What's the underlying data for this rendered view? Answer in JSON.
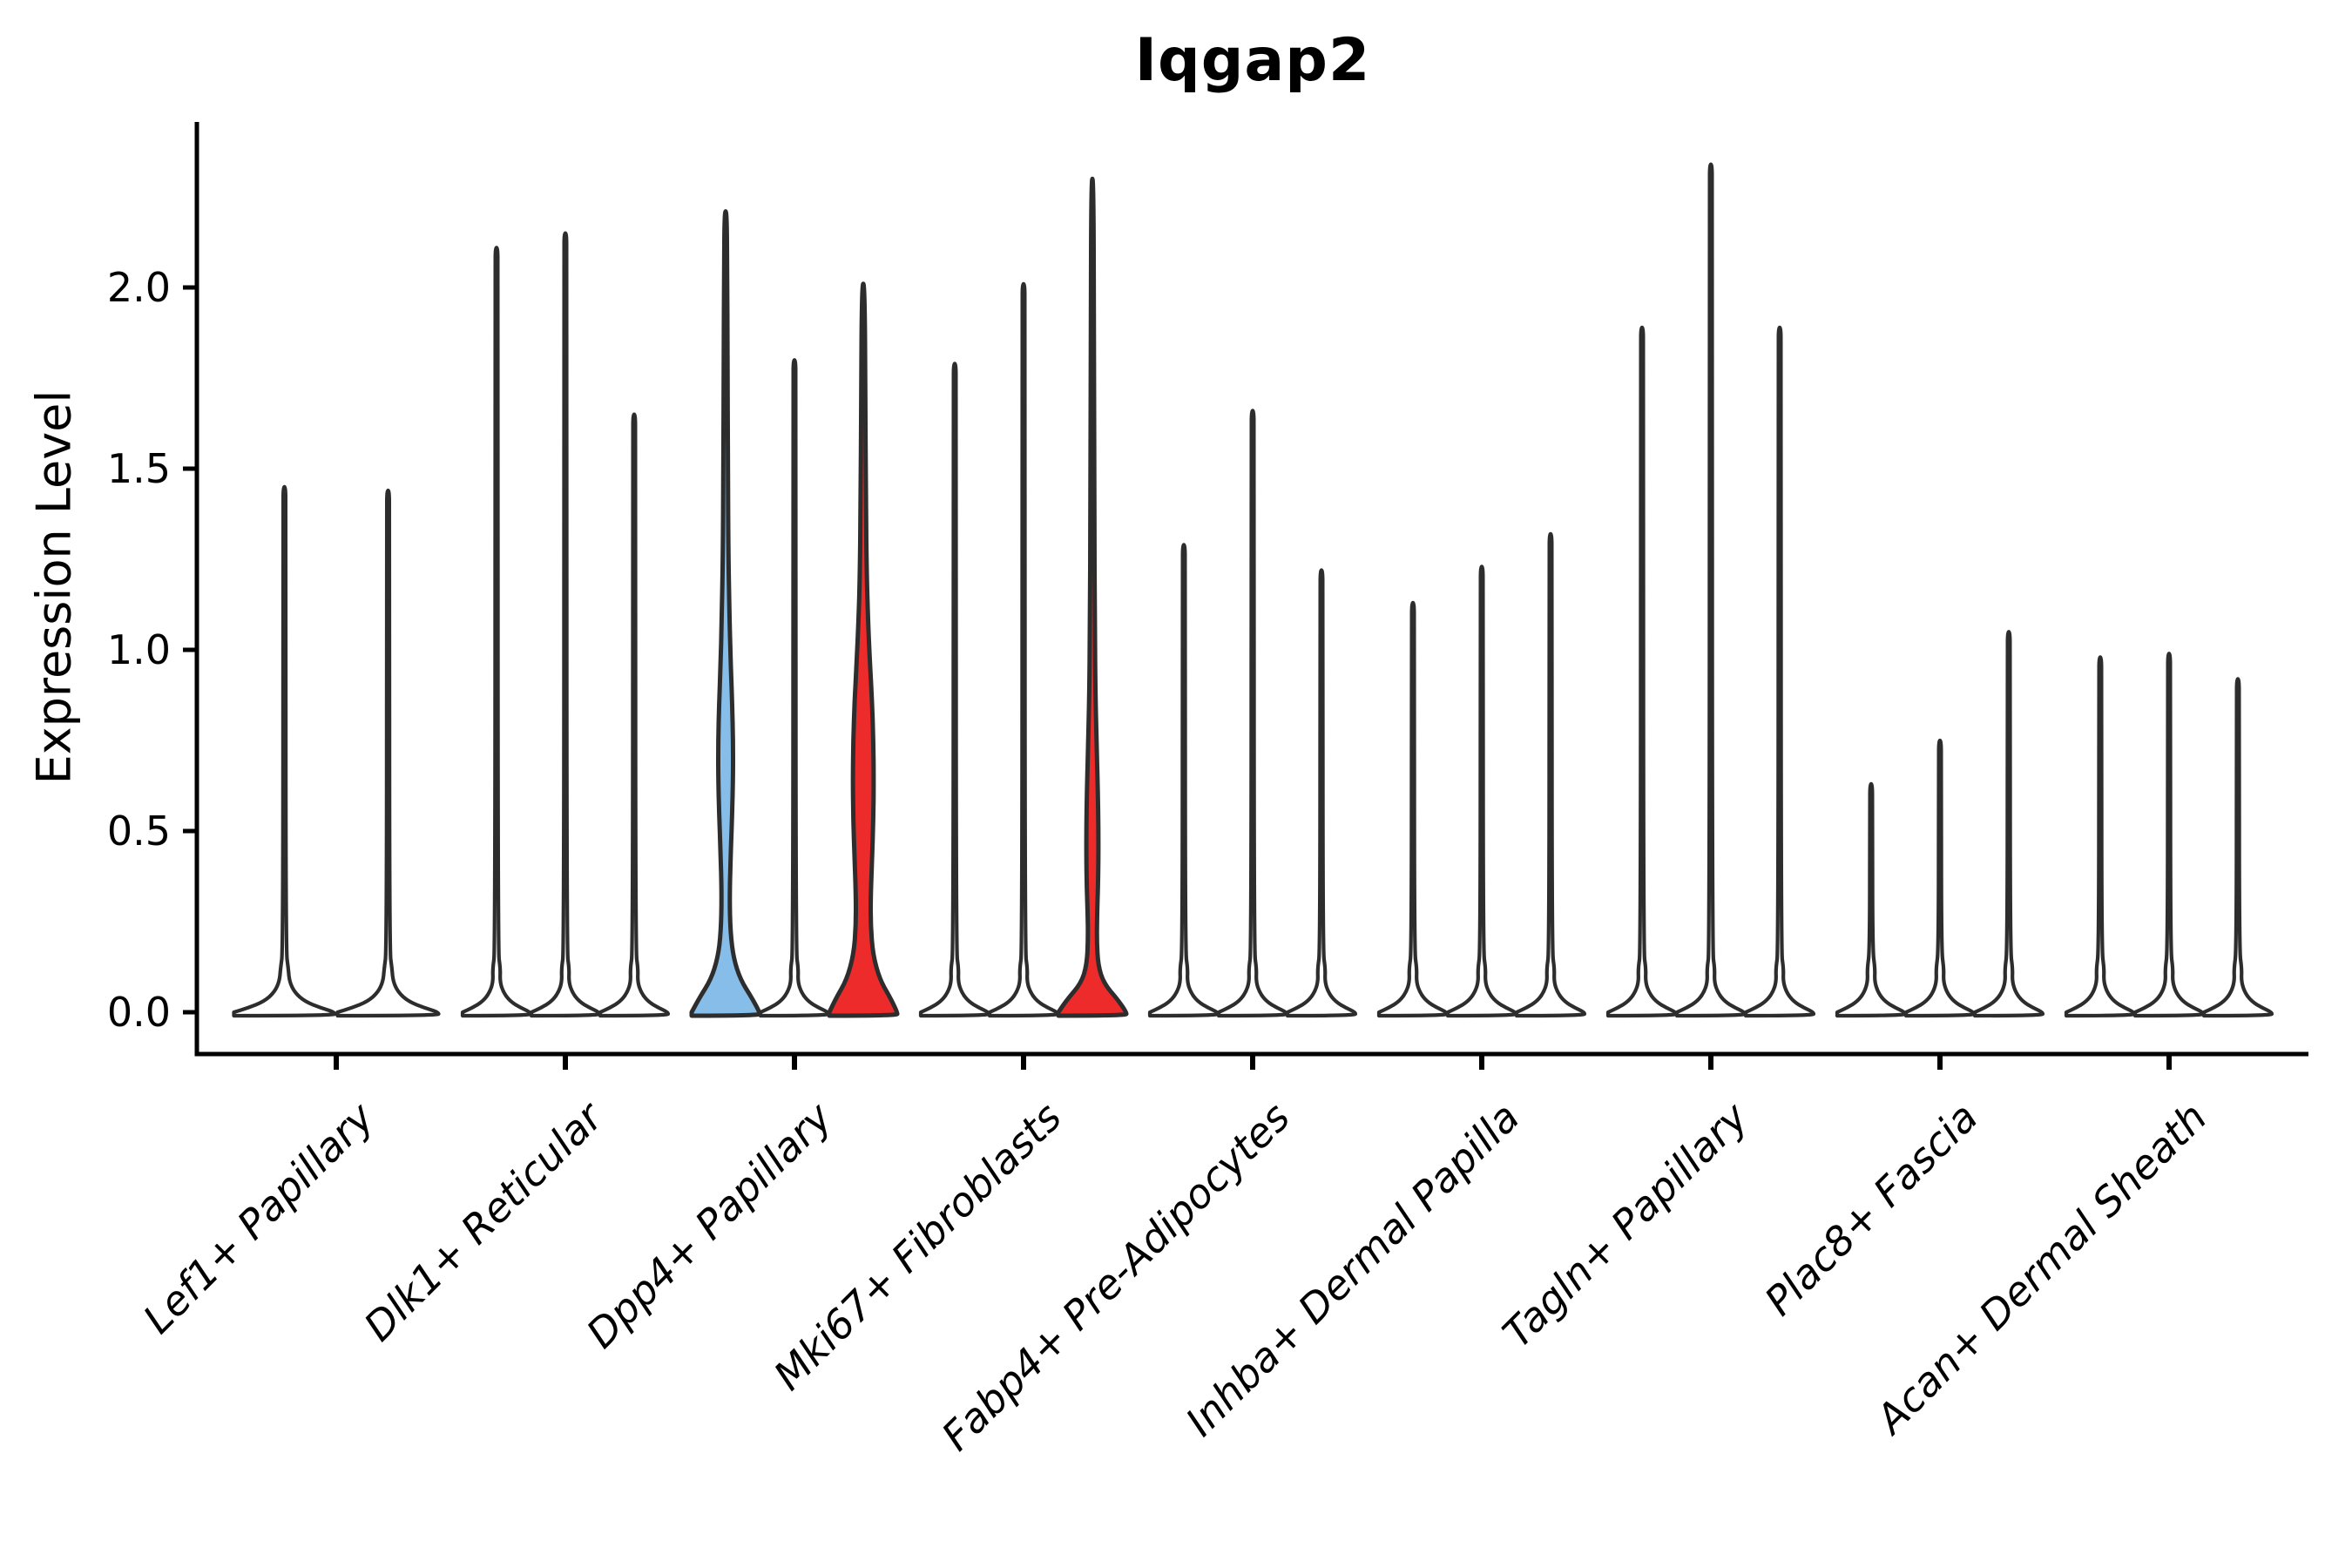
{
  "chart_data": {
    "type": "violin",
    "title": "Iqgap2",
    "ylabel": "Expression Level",
    "yticks": [
      0.0,
      0.5,
      1.0,
      1.5,
      2.0
    ],
    "ylim": [
      -0.1,
      2.46
    ],
    "grid": false,
    "legend": false,
    "categories": [
      "Lef1+ Papillary",
      "Dlk1+ Reticular",
      "Dpp4+ Papillary",
      "Mki67+ Fibroblasts",
      "Fabp4+ Pre-Adipocytes",
      "Inhba+ Dermal Papilla",
      "Tagln+ Papillary",
      "Plac8+ Fascia",
      "Acan+ Dermal Sheath"
    ],
    "palette": {
      "highlight_blue": "#86BEE9",
      "highlight_red": "#EE2B2B",
      "violin_fill": "#ffffff",
      "violin_outline": "#2D2D2D",
      "axis": "#000000"
    },
    "groups": [
      {
        "category": "Lef1+ Papillary",
        "violins": [
          {
            "max": 1.45
          },
          {
            "max": 1.44
          }
        ]
      },
      {
        "category": "Dlk1+ Reticular",
        "violins": [
          {
            "max": 2.11
          },
          {
            "max": 2.15
          },
          {
            "max": 1.65
          }
        ]
      },
      {
        "category": "Dpp4+ Papillary",
        "violins": [
          {
            "max": 2.21,
            "fill": "highlight_blue",
            "profile": [
              [
                0,
                39
              ],
              [
                0.04,
                30
              ],
              [
                0.09,
                17
              ],
              [
                0.15,
                9
              ],
              [
                0.22,
                5.5
              ],
              [
                0.32,
                4.5
              ],
              [
                0.45,
                6
              ],
              [
                0.55,
                7.5
              ],
              [
                0.65,
                8.5
              ],
              [
                0.75,
                8.5
              ],
              [
                0.85,
                7.5
              ],
              [
                0.95,
                6
              ],
              [
                1.08,
                4.5
              ],
              [
                1.25,
                3.2
              ],
              [
                1.5,
                2.6
              ],
              [
                1.8,
                2.2
              ],
              [
                2.05,
                1.8
              ],
              [
                2.21,
                1.2
              ]
            ]
          },
          {
            "max": 1.8
          },
          {
            "max": 2.01,
            "fill": "highlight_red",
            "profile": [
              [
                0,
                39
              ],
              [
                0.04,
                31
              ],
              [
                0.09,
                19
              ],
              [
                0.16,
                11
              ],
              [
                0.24,
                8.5
              ],
              [
                0.32,
                8.5
              ],
              [
                0.42,
                10
              ],
              [
                0.53,
                11.5
              ],
              [
                0.64,
                12
              ],
              [
                0.75,
                11.5
              ],
              [
                0.86,
                10
              ],
              [
                0.97,
                7.5
              ],
              [
                1.08,
                5.5
              ],
              [
                1.2,
                4
              ],
              [
                1.4,
                3
              ],
              [
                1.7,
                2.4
              ],
              [
                2.01,
                1.5
              ]
            ]
          }
        ]
      },
      {
        "category": "Mki67+ Fibroblasts",
        "violins": [
          {
            "max": 1.79
          },
          {
            "max": 2.01
          },
          {
            "max": 2.3,
            "fill": "highlight_red",
            "profile": [
              [
                0,
                39
              ],
              [
                0.035,
                29
              ],
              [
                0.08,
                13
              ],
              [
                0.13,
                6.5
              ],
              [
                0.2,
                5
              ],
              [
                0.28,
                5.5
              ],
              [
                0.38,
                6.8
              ],
              [
                0.5,
                7
              ],
              [
                0.62,
                6.2
              ],
              [
                0.74,
                4.8
              ],
              [
                0.88,
                3.5
              ],
              [
                1.05,
                2.8
              ],
              [
                1.4,
                2.2
              ],
              [
                1.9,
                1.8
              ],
              [
                2.3,
                1.2
              ]
            ]
          }
        ]
      },
      {
        "category": "Fabp4+ Pre-Adipocytes",
        "violins": [
          {
            "max": 1.29
          },
          {
            "max": 1.66
          },
          {
            "max": 1.22
          }
        ]
      },
      {
        "category": "Inhba+ Dermal Papilla",
        "violins": [
          {
            "max": 1.13
          },
          {
            "max": 1.23
          },
          {
            "max": 1.32
          }
        ]
      },
      {
        "category": "Tagln+ Papillary",
        "violins": [
          {
            "max": 1.89
          },
          {
            "max": 2.34
          },
          {
            "max": 1.89
          }
        ]
      },
      {
        "category": "Plac8+ Fascia",
        "violins": [
          {
            "max": 0.63
          },
          {
            "max": 0.75
          },
          {
            "max": 1.05
          }
        ]
      },
      {
        "category": "Acan+ Dermal Sheath",
        "violins": [
          {
            "max": 0.98
          },
          {
            "max": 0.99
          },
          {
            "max": 0.92
          }
        ]
      }
    ]
  }
}
